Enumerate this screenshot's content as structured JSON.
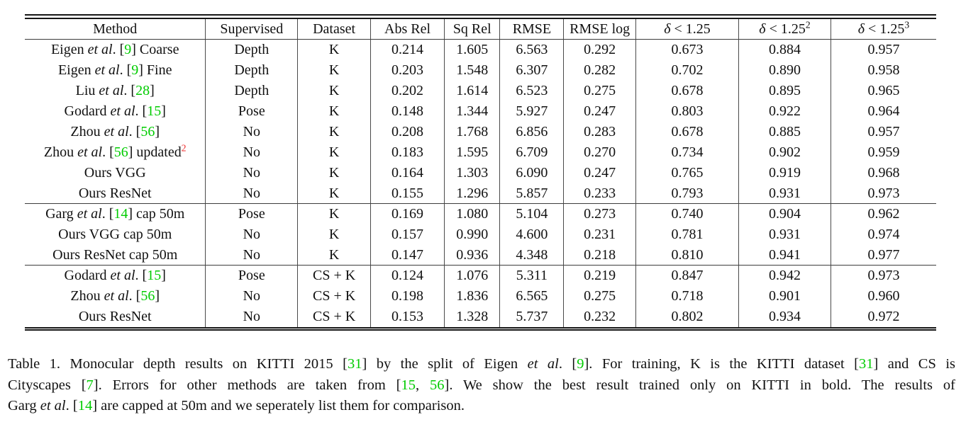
{
  "colors": {
    "citation_green": "#00cc00",
    "footnote_red": "#ee2b2b",
    "text": "#111111",
    "rule": "#3c3c3c"
  },
  "table": {
    "title_semantic": "Monocular depth results on KITTI 2015 (Eigen split)",
    "headers": [
      {
        "segs": [
          {
            "t": "Method"
          }
        ]
      },
      {
        "segs": [
          {
            "t": "Supervised"
          }
        ]
      },
      {
        "segs": [
          {
            "t": "Dataset"
          }
        ]
      },
      {
        "segs": [
          {
            "t": "Abs Rel"
          }
        ]
      },
      {
        "segs": [
          {
            "t": "Sq Rel"
          }
        ]
      },
      {
        "segs": [
          {
            "t": "RMSE"
          }
        ]
      },
      {
        "segs": [
          {
            "t": "RMSE log"
          }
        ]
      },
      {
        "segs": [
          {
            "t": "δ",
            "s": "i"
          },
          {
            "t": " < 1.25"
          }
        ]
      },
      {
        "segs": [
          {
            "t": "δ",
            "s": "i"
          },
          {
            "t": " < 1.25"
          },
          {
            "t": "2",
            "s": "sup"
          }
        ]
      },
      {
        "segs": [
          {
            "t": "δ",
            "s": "i"
          },
          {
            "t": " < 1.25"
          },
          {
            "t": "3",
            "s": "sup"
          }
        ]
      }
    ],
    "groups": [
      {
        "rows": [
          {
            "method": [
              {
                "t": "Eigen "
              },
              {
                "t": "et al",
                "s": "i"
              },
              {
                "t": ". ["
              },
              {
                "t": "9",
                "s": "cite"
              },
              {
                "t": "] Coarse"
              }
            ],
            "supervised": "Depth",
            "dataset": "K",
            "metrics": [
              "0.214",
              "1.605",
              "6.563",
              "0.292",
              "0.673",
              "0.884",
              "0.957"
            ],
            "bold": []
          },
          {
            "method": [
              {
                "t": "Eigen "
              },
              {
                "t": "et al",
                "s": "i"
              },
              {
                "t": ". ["
              },
              {
                "t": "9",
                "s": "cite"
              },
              {
                "t": "] Fine"
              }
            ],
            "supervised": "Depth",
            "dataset": "K",
            "metrics": [
              "0.203",
              "1.548",
              "6.307",
              "0.282",
              "0.702",
              "0.890",
              "0.958"
            ],
            "bold": []
          },
          {
            "method": [
              {
                "t": "Liu "
              },
              {
                "t": "et al",
                "s": "i"
              },
              {
                "t": ". ["
              },
              {
                "t": "28",
                "s": "cite"
              },
              {
                "t": "]"
              }
            ],
            "supervised": "Depth",
            "dataset": "K",
            "metrics": [
              "0.202",
              "1.614",
              "6.523",
              "0.275",
              "0.678",
              "0.895",
              "0.965"
            ],
            "bold": []
          },
          {
            "method": [
              {
                "t": "Godard "
              },
              {
                "t": "et al",
                "s": "i"
              },
              {
                "t": ". ["
              },
              {
                "t": "15",
                "s": "cite"
              },
              {
                "t": "]"
              }
            ],
            "supervised": "Pose",
            "dataset": "K",
            "metrics": [
              "0.148",
              "1.344",
              "5.927",
              "0.247",
              "0.803",
              "0.922",
              "0.964"
            ],
            "bold": [
              0,
              4
            ]
          },
          {
            "method": [
              {
                "t": "Zhou "
              },
              {
                "t": "et al",
                "s": "i"
              },
              {
                "t": ". ["
              },
              {
                "t": "56",
                "s": "cite"
              },
              {
                "t": "]"
              }
            ],
            "supervised": "No",
            "dataset": "K",
            "metrics": [
              "0.208",
              "1.768",
              "6.856",
              "0.283",
              "0.678",
              "0.885",
              "0.957"
            ],
            "bold": []
          },
          {
            "method": [
              {
                "t": "Zhou "
              },
              {
                "t": "et al",
                "s": "i"
              },
              {
                "t": ". ["
              },
              {
                "t": "56",
                "s": "cite"
              },
              {
                "t": "] updated"
              },
              {
                "t": "2",
                "s": "supred"
              }
            ],
            "supervised": "No",
            "dataset": "K",
            "metrics": [
              "0.183",
              "1.595",
              "6.709",
              "0.270",
              "0.734",
              "0.902",
              "0.959"
            ],
            "bold": []
          },
          {
            "method": [
              {
                "t": "Ours VGG"
              }
            ],
            "supervised": "No",
            "dataset": "K",
            "metrics": [
              "0.164",
              "1.303",
              "6.090",
              "0.247",
              "0.765",
              "0.919",
              "0.968"
            ],
            "bold": []
          },
          {
            "method": [
              {
                "t": "Ours ResNet"
              }
            ],
            "supervised": "No",
            "dataset": "K",
            "metrics": [
              "0.155",
              "1.296",
              "5.857",
              "0.233",
              "0.793",
              "0.931",
              "0.973"
            ],
            "bold": [
              1,
              2,
              3,
              5,
              6
            ]
          }
        ]
      },
      {
        "rows": [
          {
            "method": [
              {
                "t": "Garg "
              },
              {
                "t": "et al",
                "s": "i"
              },
              {
                "t": ". ["
              },
              {
                "t": "14",
                "s": "cite"
              },
              {
                "t": "] cap 50m"
              }
            ],
            "supervised": "Pose",
            "dataset": "K",
            "metrics": [
              "0.169",
              "1.080",
              "5.104",
              "0.273",
              "0.740",
              "0.904",
              "0.962"
            ],
            "bold": []
          },
          {
            "method": [
              {
                "t": "Ours VGG cap 50m"
              }
            ],
            "supervised": "No",
            "dataset": "K",
            "metrics": [
              "0.157",
              "0.990",
              "4.600",
              "0.231",
              "0.781",
              "0.931",
              "0.974"
            ],
            "bold": []
          },
          {
            "method": [
              {
                "t": "Ours ResNet cap 50m"
              }
            ],
            "supervised": "No",
            "dataset": "K",
            "metrics": [
              "0.147",
              "0.936",
              "4.348",
              "0.218",
              "0.810",
              "0.941",
              "0.977"
            ],
            "bold": [
              0,
              1,
              2,
              3,
              4,
              5,
              6
            ]
          }
        ]
      },
      {
        "rows": [
          {
            "method": [
              {
                "t": "Godard "
              },
              {
                "t": "et al",
                "s": "i"
              },
              {
                "t": ". ["
              },
              {
                "t": "15",
                "s": "cite"
              },
              {
                "t": "]"
              }
            ],
            "supervised": "Pose",
            "dataset": "CS + K",
            "metrics": [
              "0.124",
              "1.076",
              "5.311",
              "0.219",
              "0.847",
              "0.942",
              "0.973"
            ],
            "bold": [
              0,
              1,
              2,
              3,
              4,
              5,
              6
            ]
          },
          {
            "method": [
              {
                "t": "Zhou "
              },
              {
                "t": "et al",
                "s": "i"
              },
              {
                "t": ". ["
              },
              {
                "t": "56",
                "s": "cite"
              },
              {
                "t": "]"
              }
            ],
            "supervised": "No",
            "dataset": "CS + K",
            "metrics": [
              "0.198",
              "1.836",
              "6.565",
              "0.275",
              "0.718",
              "0.901",
              "0.960"
            ],
            "bold": []
          },
          {
            "method": [
              {
                "t": "Ours ResNet"
              }
            ],
            "supervised": "No",
            "dataset": "CS + K",
            "metrics": [
              "0.153",
              "1.328",
              "5.737",
              "0.232",
              "0.802",
              "0.934",
              "0.972"
            ],
            "bold": []
          }
        ]
      }
    ]
  },
  "caption": {
    "lines": [
      [
        {
          "t": "Table 1. Monocular depth results on KITTI 2015 ["
        },
        {
          "t": "31",
          "s": "cite"
        },
        {
          "t": "] by the split of Eigen "
        },
        {
          "t": "et al",
          "s": "i"
        },
        {
          "t": ". ["
        },
        {
          "t": "9",
          "s": "cite"
        },
        {
          "t": "].  For training, K is the KITTI dataset ["
        },
        {
          "t": "31",
          "s": "cite"
        },
        {
          "t": "] and CS is"
        }
      ],
      [
        {
          "t": "Cityscapes ["
        },
        {
          "t": "7",
          "s": "cite"
        },
        {
          "t": "].  Errors for other methods are taken from ["
        },
        {
          "t": "15",
          "s": "cite"
        },
        {
          "t": ", "
        },
        {
          "t": "56",
          "s": "cite"
        },
        {
          "t": "].  We show the best result trained only on KITTI in bold.  The results of"
        }
      ],
      [
        {
          "t": "Garg "
        },
        {
          "t": "et al",
          "s": "i"
        },
        {
          "t": ". ["
        },
        {
          "t": "14",
          "s": "cite"
        },
        {
          "t": "] are capped at 50m and we seperately list them for comparison."
        }
      ]
    ]
  }
}
